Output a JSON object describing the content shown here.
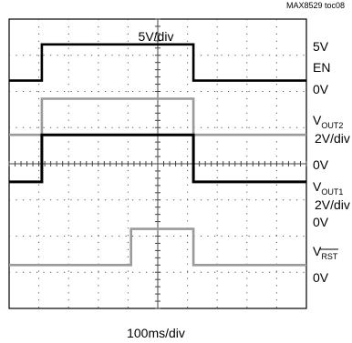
{
  "chart_data": {
    "type": "line",
    "source_tag": "MAX8529 toc08",
    "scale_top": "5V/div",
    "xlabel": "100ms/div",
    "divisions": {
      "x": 10,
      "y": 8
    },
    "x_unit": "div",
    "y_unit": "div",
    "channel_labels": {
      "ch1": {
        "top": "5V",
        "mid": "EN",
        "zero": "0V"
      },
      "ch2": {
        "main": "V",
        "sub": "OUT2",
        "scale": "2V/div"
      },
      "ch3": {
        "zero": "0V",
        "main": "V",
        "sub": "OUT1",
        "scale": "2V/div"
      },
      "ch4": {
        "zero": "0V",
        "main": "V",
        "sub": "RST",
        "zero2": "0V"
      }
    },
    "series": [
      {
        "color": "#000000",
        "baseline_div": 6.3,
        "high_div": 7.3,
        "x": [
          0,
          1.1,
          1.1,
          6.2,
          6.2,
          10
        ],
        "level": [
          0,
          0,
          1,
          1,
          0,
          0
        ]
      },
      {
        "color": "#9a9a9a",
        "baseline_div": 4.8,
        "high_div": 5.8,
        "x": [
          0,
          1.1,
          1.1,
          6.2,
          6.2,
          10
        ],
        "level": [
          0,
          0,
          1,
          1,
          0,
          0
        ]
      },
      {
        "color": "#000000",
        "baseline_div": 3.5,
        "high_div": 4.8,
        "x": [
          0,
          1.1,
          1.1,
          6.2,
          6.2,
          10
        ],
        "level": [
          0,
          0,
          1,
          1,
          0,
          0
        ]
      },
      {
        "color": "#9a9a9a",
        "baseline_div": 1.2,
        "high_div": 2.2,
        "x": [
          0,
          4.1,
          4.1,
          6.2,
          6.2,
          10
        ],
        "level": [
          0,
          0,
          1,
          1,
          0,
          0
        ]
      }
    ]
  }
}
